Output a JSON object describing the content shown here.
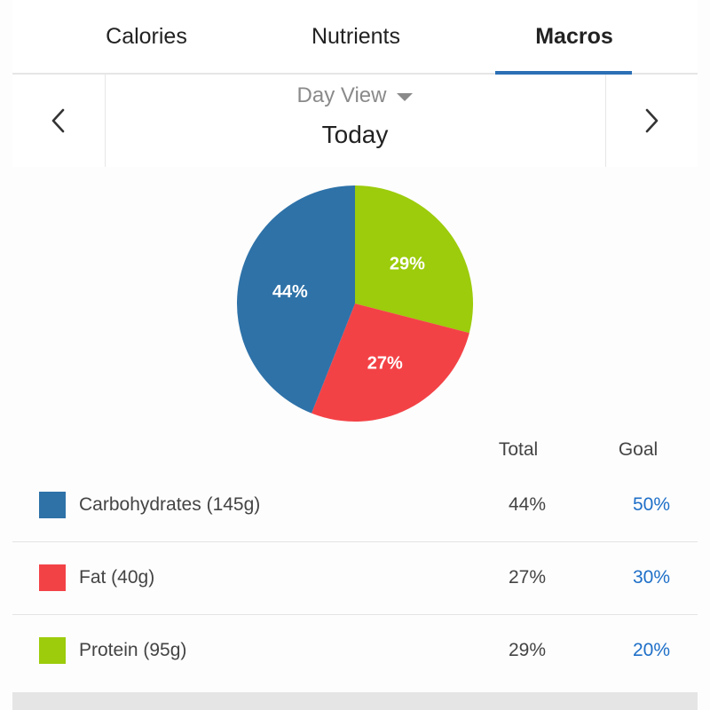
{
  "tabs": [
    {
      "label": "Calories",
      "active": false
    },
    {
      "label": "Nutrients",
      "active": false
    },
    {
      "label": "Macros",
      "active": true
    }
  ],
  "date_nav": {
    "view": "Day View",
    "date": "Today",
    "prev_icon": "chevron-left-icon",
    "next_icon": "chevron-right-icon"
  },
  "colors": {
    "accent": "#2c6fb5",
    "goal_link": "#1e6fc8",
    "carbohydrates": "#2e72a8",
    "fat": "#f34246",
    "protein": "#9ccc0b"
  },
  "chart_data": {
    "type": "pie",
    "slices": [
      {
        "label": "29%",
        "value": 29,
        "color": "#9ccc0b"
      },
      {
        "label": "27%",
        "value": 27,
        "color": "#f34246"
      },
      {
        "label": "44%",
        "value": 44,
        "color": "#2e72a8"
      }
    ]
  },
  "table": {
    "headers": {
      "total": "Total",
      "goal": "Goal"
    },
    "rows": [
      {
        "name": "Carbohydrates (145g)",
        "total": "44%",
        "goal": "50%",
        "color": "#2e72a8"
      },
      {
        "name": "Fat (40g)",
        "total": "27%",
        "goal": "30%",
        "color": "#f34246"
      },
      {
        "name": "Protein (95g)",
        "total": "29%",
        "goal": "20%",
        "color": "#9ccc0b"
      }
    ]
  }
}
